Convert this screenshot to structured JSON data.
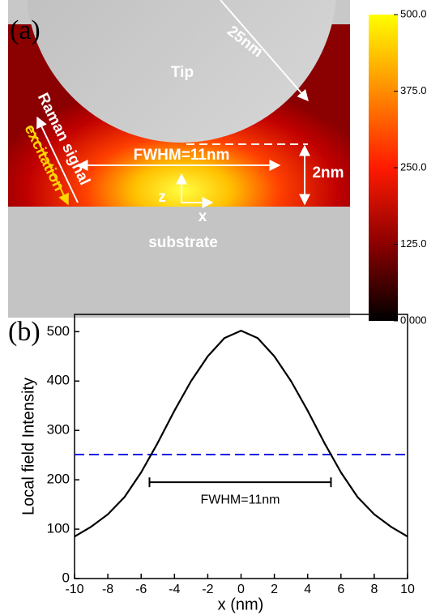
{
  "chart_data": [
    {
      "type": "heatmap",
      "panel_label": "(a)",
      "annotations": [
        "25nm",
        "Tip",
        "Raman signal",
        "excitation",
        "FWHM=11nm",
        "2nm",
        "z",
        "x",
        "substrate"
      ],
      "colormap": [
        "#000000",
        "#8b0000",
        "#ff1a00",
        "#ff8c00",
        "#ffff00"
      ],
      "clim": [
        0,
        500
      ],
      "cticks": [
        {
          "value": 0,
          "label": "0.000"
        },
        {
          "value": 125,
          "label": "125.0"
        },
        {
          "value": 250,
          "label": "250.0"
        },
        {
          "value": 375,
          "label": "375.0"
        },
        {
          "value": 500,
          "label": "500.0"
        }
      ]
    },
    {
      "type": "line",
      "panel_label": "(b)",
      "x_label": "x (nm)",
      "y_label": "Local field Intensity",
      "x": [
        -10,
        -9,
        -8,
        -7,
        -6,
        -5,
        -4,
        -3,
        -2,
        -1,
        0,
        1,
        2,
        3,
        4,
        5,
        6,
        7,
        8,
        9,
        10
      ],
      "values": [
        85,
        105,
        130,
        165,
        215,
        275,
        340,
        400,
        450,
        487,
        502,
        487,
        450,
        400,
        340,
        275,
        215,
        165,
        130,
        105,
        85
      ],
      "color": "#000000",
      "xlim": [
        -10,
        10
      ],
      "ylim": [
        0,
        535
      ],
      "xticks": [
        -10,
        -8,
        -6,
        -4,
        -2,
        0,
        2,
        4,
        6,
        8,
        10
      ],
      "yticks": [
        0,
        100,
        200,
        300,
        400,
        500
      ],
      "threshold": {
        "value": 251,
        "color": "#1a1ae6"
      },
      "fwhm": {
        "x": [
          -5.5,
          5.4
        ],
        "y": 195,
        "label": "FWHM=11nm"
      }
    }
  ]
}
